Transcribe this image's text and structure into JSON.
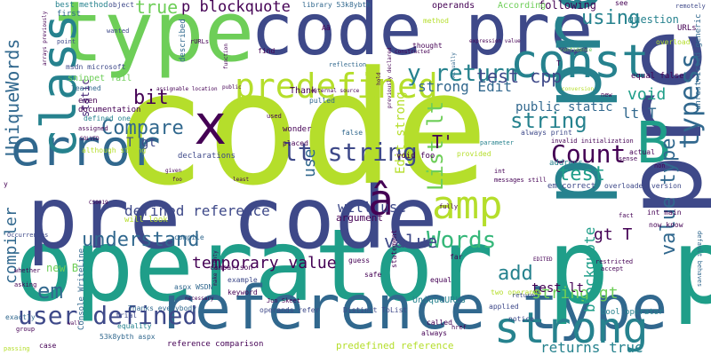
{
  "palette": {
    "yellowgreen": "#b5de2b",
    "green": "#6ece58",
    "teal": "#1f9e89",
    "blue": "#31688e",
    "indigo": "#3e4989",
    "purple": "#482878",
    "deep": "#440154",
    "aqua": "#35b779",
    "sea": "#26828e"
  },
  "words": [
    {
      "text": "code",
      "color": "#b5de2b"
    },
    {
      "text": "operator",
      "color": "#1f9e89"
    },
    {
      "text": "pre code",
      "color": "#3e4989"
    },
    {
      "text": "type",
      "color": "#6ece58"
    },
    {
      "text": "code pre",
      "color": "#3e4989"
    },
    {
      "text": "reference type",
      "color": "#31688e"
    },
    {
      "text": "pre",
      "color": "#3e4989"
    },
    {
      "text": "p p",
      "color": "#1f9e89"
    },
    {
      "text": "p pre",
      "color": "#26828e"
    },
    {
      "text": "const",
      "color": "#26828e"
    },
    {
      "text": "error",
      "color": "#31688e"
    },
    {
      "text": "class",
      "color": "#26828e"
    },
    {
      "text": "x",
      "color": "#440154"
    },
    {
      "text": "B",
      "color": "#1f9e89"
    },
    {
      "text": "amp",
      "color": "#b5de2b"
    },
    {
      "text": "strong",
      "color": "#26828e"
    },
    {
      "text": "predefined",
      "color": "#b5de2b"
    },
    {
      "text": "typess",
      "color": "#31688e"
    },
    {
      "text": "user defined",
      "color": "#3e4989"
    },
    {
      "text": "lt string",
      "color": "#3e4989"
    },
    {
      "text": "Count",
      "color": "#440154"
    },
    {
      "text": "List lt",
      "color": "#6ece58"
    },
    {
      "text": "value type",
      "color": "#31688e"
    },
    {
      "text": "y return",
      "color": "#26828e"
    },
    {
      "text": "understand",
      "color": "#31688e"
    },
    {
      "text": "UniqueWords",
      "color": "#31688e"
    },
    {
      "text": "Compare",
      "color": "#31688e"
    },
    {
      "text": "test cpp",
      "color": "#3e4989"
    },
    {
      "text": "â",
      "color": "#440154"
    },
    {
      "text": "Words",
      "color": "#35b779"
    },
    {
      "text": "string",
      "color": "#26828e"
    },
    {
      "text": "test",
      "color": "#1f9e89"
    },
    {
      "text": "em",
      "color": "#31688e"
    },
    {
      "text": "temporary value",
      "color": "#440154"
    },
    {
      "text": "bit",
      "color": "#440154"
    },
    {
      "text": "value",
      "color": "#3e4989"
    },
    {
      "text": "using",
      "color": "#26828e"
    },
    {
      "text": "compiler",
      "color": "#31688e"
    },
    {
      "text": "true",
      "color": "#6ece58"
    },
    {
      "text": "p blockquote",
      "color": "#440154"
    },
    {
      "text": "defined reference",
      "color": "#3e4989"
    },
    {
      "text": "add",
      "color": "#26828e"
    },
    {
      "text": "returns true",
      "color": "#26828e"
    },
    {
      "text": "use",
      "color": "#31688e"
    },
    {
      "text": "strong Edit",
      "color": "#31688e"
    },
    {
      "text": "will use",
      "color": "#3e4989"
    },
    {
      "text": "gt T",
      "color": "#440154"
    },
    {
      "text": "string gt",
      "color": "#6ece58"
    },
    {
      "text": "void",
      "color": "#1f9e89"
    },
    {
      "text": "blockquote",
      "color": "#1f9e89"
    },
    {
      "text": "lt T",
      "color": "#31688e"
    },
    {
      "text": "T'",
      "color": "#440154"
    },
    {
      "text": "Edit strong",
      "color": "#b5de2b"
    },
    {
      "text": "public static",
      "color": "#31688e"
    },
    {
      "text": "T gt",
      "color": "#3e4989"
    },
    {
      "text": "test lt",
      "color": "#440154"
    },
    {
      "text": "new B",
      "color": "#6ece58"
    },
    {
      "text": "static",
      "color": "#482878"
    },
    {
      "text": "operands",
      "color": "#440154"
    },
    {
      "text": "following",
      "color": "#440154"
    },
    {
      "text": "question",
      "color": "#26828e"
    },
    {
      "text": "remotely",
      "color": "#3e4989"
    },
    {
      "text": "best method",
      "color": "#26828e"
    },
    {
      "text": "object",
      "color": "#3e4989"
    },
    {
      "text": "library 53k8ybth",
      "color": "#31688e"
    },
    {
      "text": "According",
      "color": "#6ece58"
    },
    {
      "text": "see",
      "color": "#440154"
    },
    {
      "text": "first",
      "color": "#31688e"
    },
    {
      "text": "method",
      "color": "#b5de2b"
    },
    {
      "text": "wanted",
      "color": "#3e4989"
    },
    {
      "text": "point",
      "color": "#3e4989"
    },
    {
      "text": "Aã",
      "color": "#440154"
    },
    {
      "text": "find",
      "color": "#440154"
    },
    {
      "text": "reflection",
      "color": "#31688e"
    },
    {
      "text": "thought",
      "color": "#440154"
    },
    {
      "text": "URLs",
      "color": "#440154"
    },
    {
      "text": "overload",
      "color": "#b5de2b"
    },
    {
      "text": "snippet fail",
      "color": "#6ece58"
    },
    {
      "text": "msdn microsoft",
      "color": "#3e4989"
    },
    {
      "text": "learned",
      "color": "#31688e"
    },
    {
      "text": "even",
      "color": "#440154"
    },
    {
      "text": "documentation",
      "color": "#440154"
    },
    {
      "text": "defined one",
      "color": "#26828e"
    },
    {
      "text": "pulled",
      "color": "#31688e"
    },
    {
      "text": "Thank",
      "color": "#440154"
    },
    {
      "text": "used",
      "color": "#440154"
    },
    {
      "text": "wonder",
      "color": "#440154"
    },
    {
      "text": "placed",
      "color": "#440154"
    },
    {
      "text": "false",
      "color": "#31688e"
    },
    {
      "text": "always print",
      "color": "#3e4989"
    },
    {
      "text": "parameter",
      "color": "#26828e"
    },
    {
      "text": "provided",
      "color": "#b5de2b"
    },
    {
      "text": "invalid initialization",
      "color": "#440154"
    },
    {
      "text": "void foo",
      "color": "#440154"
    },
    {
      "text": "although strong",
      "color": "#b5de2b"
    },
    {
      "text": "declarations",
      "color": "#3e4989"
    },
    {
      "text": "compile",
      "color": "#31688e"
    },
    {
      "text": "will look",
      "color": "#b5de2b"
    },
    {
      "text": "argument",
      "color": "#440154"
    },
    {
      "text": "em correct",
      "color": "#3e4989"
    },
    {
      "text": "overloaded version",
      "color": "#3e4989"
    },
    {
      "text": "address",
      "color": "#26828e"
    },
    {
      "text": "actual",
      "color": "#440154"
    },
    {
      "text": "int main",
      "color": "#440154"
    },
    {
      "text": "now know",
      "color": "#440154"
    },
    {
      "text": "fact",
      "color": "#440154"
    },
    {
      "text": "comparison",
      "color": "#440154"
    },
    {
      "text": "example",
      "color": "#3e4989"
    },
    {
      "text": "keyword",
      "color": "#440154"
    },
    {
      "text": "Jon Skeet",
      "color": "#440154"
    },
    {
      "text": "Console WriteLine",
      "color": "#31688e"
    },
    {
      "text": "aspx WSDN",
      "color": "#31688e"
    },
    {
      "text": "Thanks everybody",
      "color": "#31688e"
    },
    {
      "text": "operands refer",
      "color": "#3e4989"
    },
    {
      "text": "Distinct ToList",
      "color": "#3e4989"
    },
    {
      "text": "UniqueURLs",
      "color": "#26828e"
    },
    {
      "text": "two operands",
      "color": "#b5de2b"
    },
    {
      "text": "bool operator",
      "color": "#26828e"
    },
    {
      "text": "equality",
      "color": "#26828e"
    },
    {
      "text": "53k8ybth aspx",
      "color": "#31688e"
    },
    {
      "text": "reference comparison",
      "color": "#440154"
    },
    {
      "text": "predefined reference",
      "color": "#b5de2b"
    },
    {
      "text": "always",
      "color": "#440154"
    },
    {
      "text": "called",
      "color": "#440154"
    },
    {
      "text": "applied",
      "color": "#3e4989"
    },
    {
      "text": "href",
      "color": "#440154"
    },
    {
      "text": "notice",
      "color": "#3e4989"
    },
    {
      "text": "trial",
      "color": "#3e4989"
    },
    {
      "text": "exactly",
      "color": "#31688e"
    },
    {
      "text": "case",
      "color": "#440154"
    },
    {
      "text": "statement",
      "color": "#440154"
    },
    {
      "text": "return",
      "color": "#3e4989"
    },
    {
      "text": "equal",
      "color": "#440154"
    },
    {
      "text": "guess",
      "color": "#440154"
    },
    {
      "text": "Occurrences",
      "color": "#3e4989"
    },
    {
      "text": "asking",
      "color": "#440154"
    },
    {
      "text": "whether",
      "color": "#440154"
    },
    {
      "text": "group",
      "color": "#440154"
    },
    {
      "text": "passing",
      "color": "#b5de2b"
    },
    {
      "text": "safe",
      "color": "#440154"
    },
    {
      "text": "far",
      "color": "#440154"
    },
    {
      "text": "fully",
      "color": "#440154"
    },
    {
      "text": "int",
      "color": "#440154"
    },
    {
      "text": "messages",
      "color": "#440154"
    },
    {
      "text": "still",
      "color": "#440154"
    },
    {
      "text": "sense",
      "color": "#440154"
    },
    {
      "text": "non",
      "color": "#440154"
    },
    {
      "text": "accept",
      "color": "#440154"
    },
    {
      "text": "restricted",
      "color": "#440154"
    },
    {
      "text": "default behaves",
      "color": "#31688e"
    },
    {
      "text": "unrestricted generic",
      "color": "#31688e"
    },
    {
      "text": "equal false",
      "color": "#440154"
    },
    {
      "text": "new",
      "color": "#440154"
    },
    {
      "text": "conversion",
      "color": "#b5de2b"
    },
    {
      "text": "CS0019",
      "color": "#440154"
    },
    {
      "text": "SOLVED",
      "color": "#440154"
    },
    {
      "text": "described",
      "color": "#31688e"
    },
    {
      "text": "rURLs",
      "color": "#440154"
    },
    {
      "text": "function",
      "color": "#440154"
    },
    {
      "text": "constructed",
      "color": "#440154"
    },
    {
      "text": "expression value",
      "color": "#440154"
    },
    {
      "text": "Actually",
      "color": "#31688e"
    },
    {
      "text": "confidence",
      "color": "#6ece58"
    },
    {
      "text": "EDITED",
      "color": "#440154"
    },
    {
      "text": "necessary",
      "color": "#440154"
    },
    {
      "text": "make plenty",
      "color": "#440154"
    },
    {
      "text": "wall",
      "color": "#440154"
    },
    {
      "text": "given",
      "color": "#440154"
    },
    {
      "text": "foo",
      "color": "#440154"
    },
    {
      "text": "least",
      "color": "#440154"
    },
    {
      "text": "hold",
      "color": "#440154"
    },
    {
      "text": "previously declared",
      "color": "#440154"
    },
    {
      "text": "external source",
      "color": "#440154"
    },
    {
      "text": "public",
      "color": "#440154"
    },
    {
      "text": "assignable location",
      "color": "#440154"
    },
    {
      "text": "arrays previously",
      "color": "#440154"
    },
    {
      "text": "y",
      "color": "#440154"
    },
    {
      "text": "T",
      "color": "#440154"
    },
    {
      "text": "assigned",
      "color": "#440154"
    }
  ]
}
